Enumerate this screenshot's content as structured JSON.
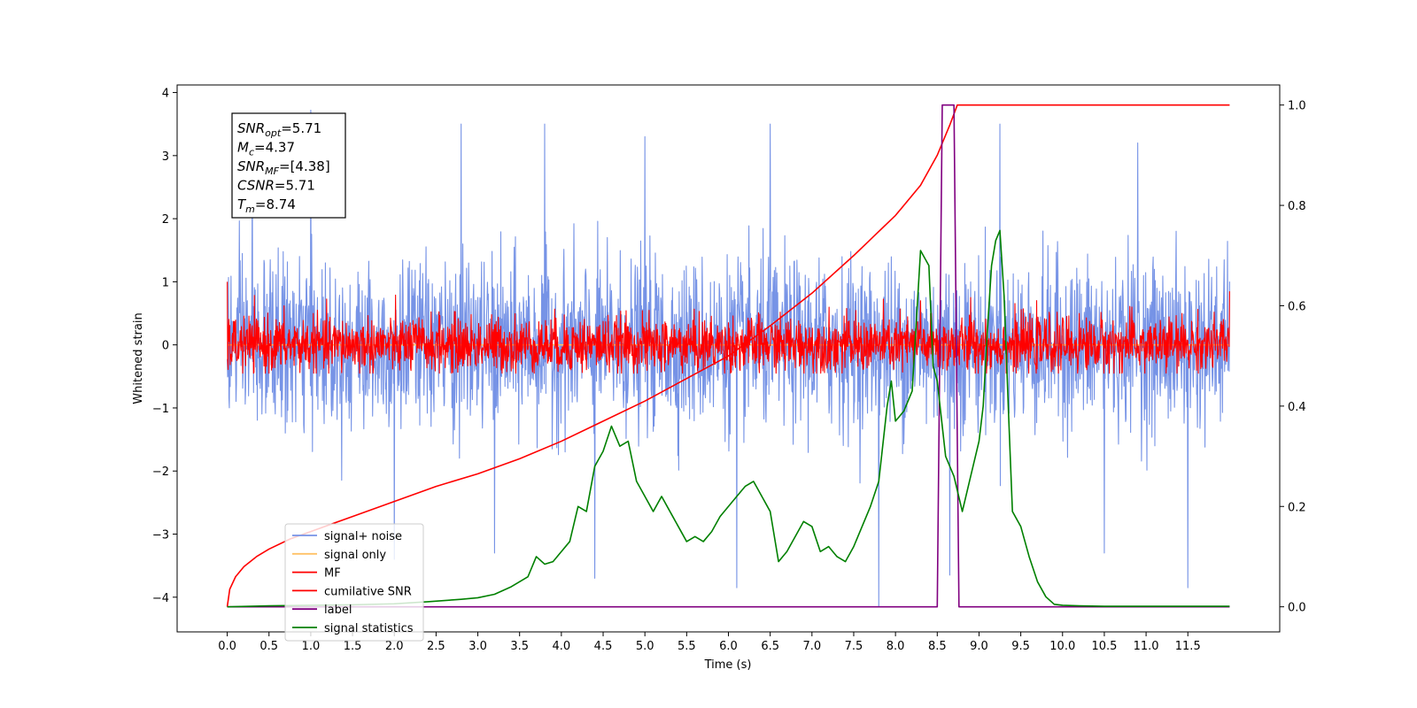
{
  "chart_data": {
    "type": "line",
    "xlabel": "Time (s)",
    "ylabel": "Whitened strain",
    "xlim": [
      -0.6,
      12.6
    ],
    "ylim": [
      -4.55,
      4.12
    ],
    "ylim_right": [
      -0.05,
      1.04
    ],
    "xticks": [
      0.0,
      0.5,
      1.0,
      1.5,
      2.0,
      2.5,
      3.0,
      3.5,
      4.0,
      4.5,
      5.0,
      5.5,
      6.0,
      6.5,
      7.0,
      7.5,
      8.0,
      8.5,
      9.0,
      9.5,
      10.0,
      10.5,
      11.0,
      11.5
    ],
    "xtick_labels": [
      "0.0",
      "0.5",
      "1.0",
      "1.5",
      "2.0",
      "2.5",
      "3.0",
      "3.5",
      "4.0",
      "4.5",
      "5.0",
      "5.5",
      "6.0",
      "6.5",
      "7.0",
      "7.5",
      "8.0",
      "8.5",
      "9.0",
      "9.5",
      "10.0",
      "10.5",
      "11.0",
      "11.5"
    ],
    "yticks": [
      -4,
      -3,
      -2,
      -1,
      0,
      1,
      2,
      3,
      4
    ],
    "ytick_labels": [
      "−4",
      "−3",
      "−2",
      "−1",
      "0",
      "1",
      "2",
      "3",
      "4"
    ],
    "yticks_right": [
      0.0,
      0.2,
      0.4,
      0.6,
      0.8,
      1.0
    ],
    "ytick_right_labels": [
      "0.0",
      "0.2",
      "0.4",
      "0.6",
      "0.8",
      "1.0"
    ],
    "grid": false,
    "legend_position": "lower-left",
    "annotation": {
      "lines": [
        {
          "name": "SNR",
          "sub": "opt",
          "value": "=5.71"
        },
        {
          "name": "M",
          "sub": "c",
          "value": "=4.37"
        },
        {
          "name": "SNR",
          "sub": "MF",
          "value": "=[4.38]"
        },
        {
          "name": "CSNR",
          "sub": "",
          "value": "=5.71"
        },
        {
          "name": "T",
          "sub": "m",
          "value": "=8.74"
        }
      ]
    },
    "series": [
      {
        "name": "signal+ noise",
        "axis": "left",
        "color": "#7693e6",
        "kind": "noise",
        "x_range": [
          0.0,
          12.0
        ],
        "band": [
          -1.2,
          1.2
        ],
        "extremes": [
          -4.15,
          3.72
        ],
        "spikes": [
          {
            "x": 1.0,
            "y": 3.72
          },
          {
            "x": 2.8,
            "y": 3.5
          },
          {
            "x": 3.8,
            "y": 3.5
          },
          {
            "x": 6.5,
            "y": 3.5
          },
          {
            "x": 9.25,
            "y": 3.5
          },
          {
            "x": 7.8,
            "y": -4.15
          },
          {
            "x": 6.1,
            "y": -3.85
          },
          {
            "x": 4.4,
            "y": -3.7
          },
          {
            "x": 8.65,
            "y": -3.65
          },
          {
            "x": 11.5,
            "y": -3.85
          },
          {
            "x": 2.0,
            "y": -3.4
          },
          {
            "x": 0.3,
            "y": 2.9
          },
          {
            "x": 5.0,
            "y": 3.3
          },
          {
            "x": 10.9,
            "y": 3.2
          },
          {
            "x": 3.2,
            "y": -3.3
          },
          {
            "x": 10.5,
            "y": -3.3
          }
        ]
      },
      {
        "name": "signal only",
        "axis": "left",
        "color": "#ffc266",
        "kind": "line",
        "x": [
          0.0,
          12.0
        ],
        "y": [
          0.0,
          0.0
        ]
      },
      {
        "name": "MF",
        "axis": "left",
        "color": "#ff0000",
        "kind": "noise",
        "x_range": [
          0.0,
          12.0
        ],
        "band": [
          -0.4,
          0.4
        ],
        "extremes": [
          -0.45,
          1.0
        ],
        "spikes": [
          {
            "x": 0.0,
            "y": 1.0
          },
          {
            "x": 12.0,
            "y": 0.85
          },
          {
            "x": 8.9,
            "y": 0.75
          },
          {
            "x": 8.3,
            "y": 0.7
          }
        ]
      },
      {
        "name": "cumilative SNR",
        "axis": "right",
        "color": "#ff0000",
        "kind": "line",
        "x": [
          0.0,
          0.03,
          0.1,
          0.2,
          0.35,
          0.5,
          0.75,
          1.0,
          1.5,
          2.0,
          2.5,
          3.0,
          3.5,
          4.0,
          4.5,
          5.0,
          5.5,
          6.0,
          6.5,
          7.0,
          7.5,
          8.0,
          8.3,
          8.5,
          8.65,
          8.74,
          9.0,
          10.0,
          11.0,
          12.0
        ],
        "y": [
          0.0,
          0.035,
          0.06,
          0.08,
          0.1,
          0.115,
          0.135,
          0.15,
          0.18,
          0.21,
          0.24,
          0.265,
          0.295,
          0.33,
          0.37,
          0.41,
          0.455,
          0.5,
          0.56,
          0.625,
          0.7,
          0.78,
          0.84,
          0.9,
          0.96,
          1.0,
          1.0,
          1.0,
          1.0,
          1.0
        ]
      },
      {
        "name": "label",
        "axis": "right",
        "color": "#800080",
        "kind": "line",
        "x": [
          0.0,
          8.5,
          8.56,
          8.7,
          8.76,
          12.0
        ],
        "y": [
          0.0,
          0.0,
          1.0,
          1.0,
          0.0,
          0.0
        ]
      },
      {
        "name": "signal statistics",
        "axis": "right",
        "color": "#008000",
        "kind": "line",
        "x": [
          0.0,
          0.5,
          1.0,
          1.5,
          2.0,
          2.4,
          2.8,
          3.0,
          3.2,
          3.4,
          3.6,
          3.7,
          3.8,
          3.9,
          4.0,
          4.1,
          4.2,
          4.3,
          4.4,
          4.5,
          4.6,
          4.7,
          4.8,
          4.9,
          5.0,
          5.1,
          5.2,
          5.3,
          5.4,
          5.5,
          5.6,
          5.7,
          5.8,
          5.9,
          6.0,
          6.1,
          6.2,
          6.3,
          6.4,
          6.5,
          6.6,
          6.7,
          6.8,
          6.9,
          7.0,
          7.1,
          7.2,
          7.3,
          7.4,
          7.5,
          7.6,
          7.7,
          7.8,
          7.9,
          7.95,
          8.0,
          8.1,
          8.2,
          8.3,
          8.4,
          8.45,
          8.5,
          8.6,
          8.7,
          8.8,
          8.9,
          9.0,
          9.05,
          9.1,
          9.15,
          9.2,
          9.25,
          9.3,
          9.35,
          9.4,
          9.5,
          9.6,
          9.7,
          9.8,
          9.9,
          10.0,
          10.2,
          10.5,
          11.0,
          11.5,
          12.0
        ],
        "y": [
          0.0,
          0.002,
          0.003,
          0.004,
          0.006,
          0.01,
          0.015,
          0.018,
          0.025,
          0.04,
          0.06,
          0.1,
          0.085,
          0.09,
          0.11,
          0.13,
          0.2,
          0.19,
          0.28,
          0.31,
          0.36,
          0.32,
          0.33,
          0.25,
          0.22,
          0.19,
          0.22,
          0.19,
          0.16,
          0.13,
          0.14,
          0.13,
          0.15,
          0.18,
          0.2,
          0.22,
          0.24,
          0.25,
          0.22,
          0.19,
          0.09,
          0.11,
          0.14,
          0.17,
          0.16,
          0.11,
          0.12,
          0.1,
          0.09,
          0.12,
          0.16,
          0.2,
          0.25,
          0.4,
          0.45,
          0.37,
          0.39,
          0.43,
          0.71,
          0.68,
          0.48,
          0.45,
          0.3,
          0.26,
          0.19,
          0.26,
          0.33,
          0.4,
          0.55,
          0.68,
          0.73,
          0.75,
          0.62,
          0.4,
          0.19,
          0.16,
          0.1,
          0.05,
          0.02,
          0.005,
          0.003,
          0.002,
          0.001,
          0.001,
          0.001,
          0.001
        ]
      }
    ]
  }
}
